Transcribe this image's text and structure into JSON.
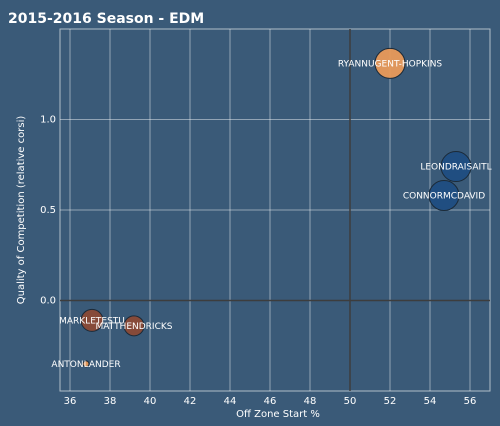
{
  "chart_data": {
    "type": "scatter",
    "title": "2015-2016 Season - EDM",
    "xlabel": "Off Zone Start %",
    "ylabel": "Quality of Competition (relative corsi)",
    "xlim": [
      35.5,
      57
    ],
    "ylim": [
      -0.5,
      1.5
    ],
    "x_ticks": [
      36,
      38,
      40,
      42,
      44,
      46,
      48,
      50,
      52,
      54,
      56
    ],
    "y_ticks": [
      0.0,
      0.5,
      1.0
    ],
    "y_tick_labels": [
      "0.0",
      "0.5",
      "1.0"
    ],
    "grid": true,
    "reference_lines": {
      "x": 50,
      "y": 0
    },
    "points": [
      {
        "label": "RYANNUGENT-HOPKINS",
        "x": 52.0,
        "y": 1.31,
        "size": 15,
        "color": "#e89a5a"
      },
      {
        "label": "LEONDRAISAITL",
        "x": 55.3,
        "y": 0.74,
        "size": 15,
        "color": "#1f4e82"
      },
      {
        "label": "CONNORMCDAVID",
        "x": 54.7,
        "y": 0.58,
        "size": 15,
        "color": "#1f4e82"
      },
      {
        "label": "MARKLETESTU",
        "x": 37.1,
        "y": -0.11,
        "size": 11,
        "color": "#8a4a36"
      },
      {
        "label": "MATTHENDRICKS",
        "x": 39.2,
        "y": -0.14,
        "size": 10,
        "color": "#8a4a36"
      },
      {
        "label": "ANTONLANDER",
        "x": 36.8,
        "y": -0.35,
        "size": 3,
        "color": "#e89a5a"
      }
    ]
  }
}
